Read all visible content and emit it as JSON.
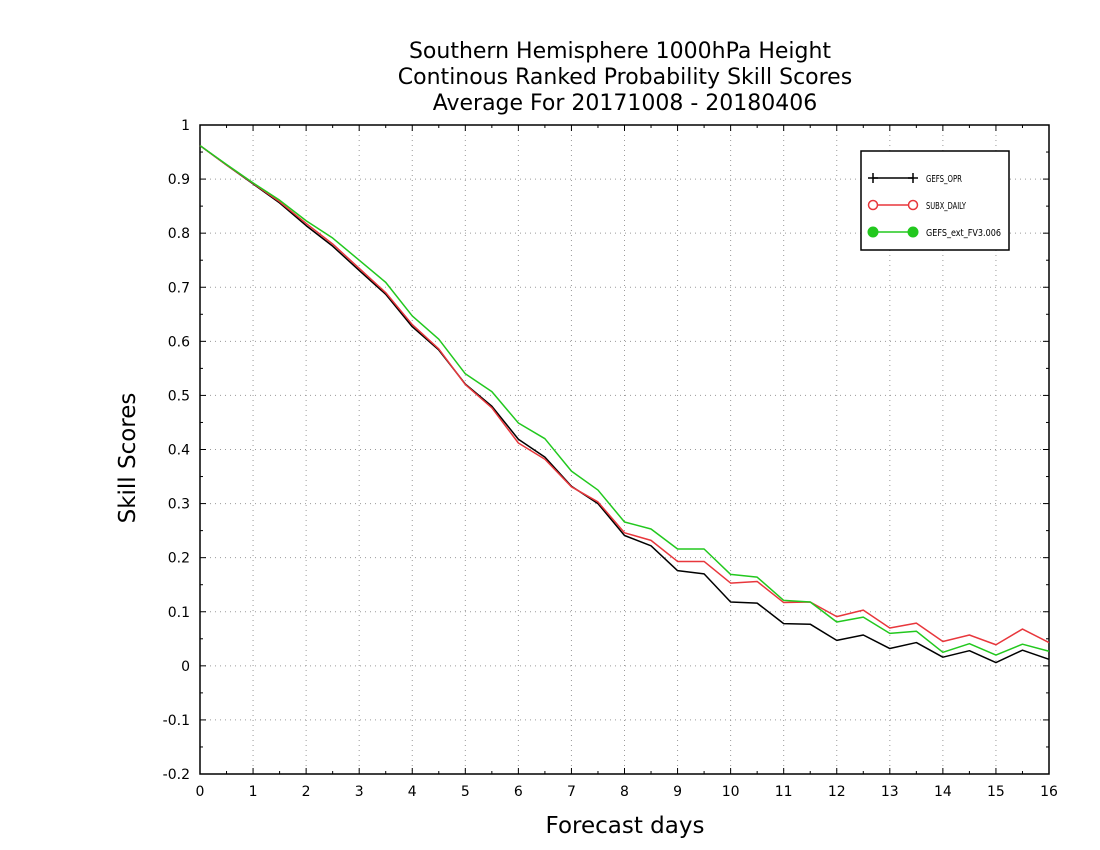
{
  "chart_data": {
    "type": "line",
    "title": [
      "Southern Hemisphere 1000hPa Height",
      "Continous Ranked Probability Skill Scores",
      "Average For 20171008 - 20180406"
    ],
    "xlabel": "Forecast days",
    "ylabel": "Skill Scores",
    "xlim": [
      0,
      16
    ],
    "ylim": [
      -0.2,
      1
    ],
    "xticks": [
      0,
      1,
      2,
      3,
      4,
      5,
      6,
      7,
      8,
      9,
      10,
      11,
      12,
      13,
      14,
      15,
      16
    ],
    "yticks": [
      -0.2,
      -0.1,
      0,
      0.1,
      0.2,
      0.3,
      0.4,
      0.5,
      0.6,
      0.7,
      0.8,
      0.9,
      1
    ],
    "ytick_labels": [
      "-0.2",
      "-0.1",
      "0",
      "0.1",
      "0.2",
      "0.3",
      "0.4",
      "0.5",
      "0.6",
      "0.7",
      "0.8",
      "0.9",
      "1"
    ],
    "grid": true,
    "legend_position": "top-right",
    "x": [
      0,
      0.5,
      1,
      1.5,
      2,
      2.5,
      3,
      3.5,
      4,
      4.5,
      5,
      5.5,
      6,
      6.5,
      7,
      7.5,
      8,
      8.5,
      9,
      9.5,
      10,
      10.5,
      11,
      11.5,
      12,
      12.5,
      13,
      13.5,
      14,
      14.5,
      15,
      15.5,
      16
    ],
    "series": [
      {
        "name": "GEFS_OPR",
        "color": "#000000",
        "marker": "plus",
        "values": [
          0.962,
          0.926,
          0.891,
          0.856,
          0.814,
          0.776,
          0.731,
          0.687,
          0.627,
          0.584,
          0.521,
          0.48,
          0.419,
          0.386,
          0.332,
          0.3,
          0.241,
          0.222,
          0.176,
          0.17,
          0.118,
          0.116,
          0.078,
          0.077,
          0.047,
          0.057,
          0.032,
          0.043,
          0.016,
          0.028,
          0.006,
          0.029,
          0.012
        ]
      },
      {
        "name": "SUBX_DAILY",
        "color": "#e8373c",
        "marker": "open-circle",
        "values": [
          0.962,
          0.926,
          0.892,
          0.858,
          0.818,
          0.78,
          0.735,
          0.69,
          0.631,
          0.586,
          0.52,
          0.477,
          0.412,
          0.382,
          0.331,
          0.303,
          0.246,
          0.232,
          0.193,
          0.193,
          0.153,
          0.156,
          0.117,
          0.118,
          0.091,
          0.103,
          0.07,
          0.079,
          0.045,
          0.057,
          0.039,
          0.068,
          0.043
        ]
      },
      {
        "name": "GEFS_ext_FV3.006",
        "color": "#22c81e",
        "marker": "filled-circle",
        "values": [
          0.962,
          0.927,
          0.893,
          0.861,
          0.823,
          0.791,
          0.75,
          0.709,
          0.647,
          0.604,
          0.54,
          0.507,
          0.449,
          0.42,
          0.36,
          0.325,
          0.266,
          0.253,
          0.216,
          0.216,
          0.169,
          0.164,
          0.121,
          0.118,
          0.081,
          0.09,
          0.06,
          0.064,
          0.025,
          0.041,
          0.02,
          0.04,
          0.027
        ]
      }
    ]
  }
}
